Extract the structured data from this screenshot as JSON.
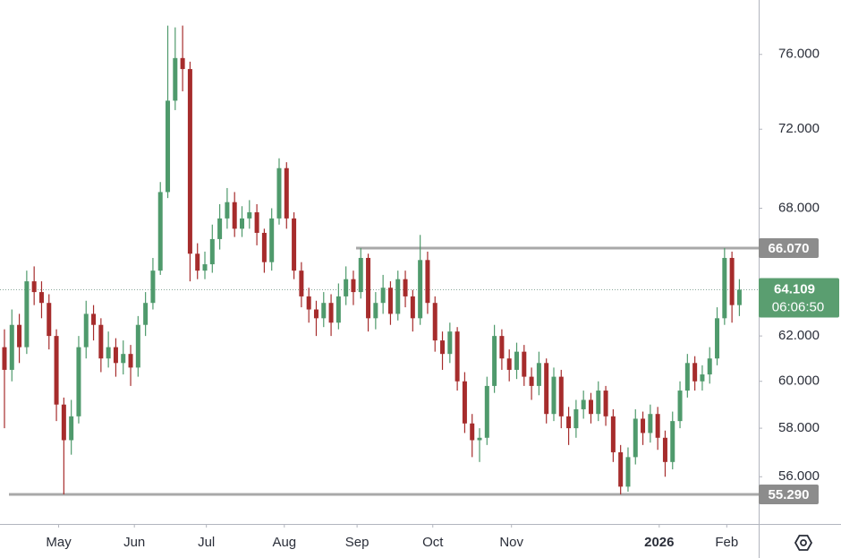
{
  "chart_data": {
    "type": "candlestick",
    "log_scale": true,
    "up_color": "#4f9a6c",
    "down_color": "#a62c2c",
    "x": [
      0,
      1,
      2,
      3,
      4,
      5,
      6,
      7,
      8,
      9,
      10,
      11,
      12,
      13,
      14,
      15,
      16,
      17,
      18,
      19,
      20,
      21,
      22,
      23,
      24,
      25,
      26,
      27,
      28,
      29,
      30,
      31,
      32,
      33,
      34,
      35,
      36,
      37,
      38,
      39,
      40,
      41,
      42,
      43,
      44,
      45,
      46,
      47,
      48,
      49,
      50,
      51,
      52,
      53,
      54,
      55,
      56,
      57,
      58,
      59,
      60,
      61,
      62,
      63,
      64,
      65,
      66,
      67,
      68,
      69,
      70,
      71,
      72,
      73,
      74,
      75,
      76,
      77,
      78,
      79,
      80,
      81,
      82,
      83,
      84,
      85,
      86,
      87,
      88,
      89,
      90,
      91,
      92,
      93,
      94,
      95,
      96,
      97,
      98,
      99
    ],
    "open": [
      61.5,
      60.5,
      62.5,
      61.5,
      64.5,
      64.0,
      63.5,
      62.0,
      59.0,
      57.5,
      58.5,
      61.5,
      63.0,
      62.5,
      61.0,
      61.5,
      60.8,
      61.2,
      60.6,
      62.5,
      63.5,
      65.0,
      68.8,
      73.5,
      75.8,
      75.2,
      65.8,
      65.0,
      65.3,
      66.5,
      67.5,
      68.3,
      67.0,
      67.5,
      67.8,
      66.8,
      65.4,
      67.5,
      70.0,
      67.5,
      65.0,
      63.8,
      63.2,
      62.8,
      63.5,
      62.6,
      63.8,
      64.6,
      64.0,
      65.6,
      62.8,
      63.5,
      64.2,
      63.0,
      64.6,
      63.8,
      62.8,
      65.5,
      63.5,
      61.8,
      61.2,
      62.2,
      60.0,
      58.2,
      57.5,
      57.6,
      59.8,
      62.0,
      61.0,
      60.5,
      61.3,
      60.2,
      59.8,
      60.8,
      58.6,
      60.2,
      58.5,
      58.0,
      58.8,
      59.2,
      58.6,
      59.6,
      58.5,
      57.0,
      55.6,
      56.8,
      58.4,
      57.8,
      58.6,
      57.6,
      56.6,
      58.3,
      59.6,
      60.8,
      60.0,
      60.3,
      61.0,
      62.8,
      65.6,
      63.4
    ],
    "high": [
      62.3,
      63.2,
      63.0,
      65.0,
      65.2,
      64.5,
      63.9,
      62.3,
      59.3,
      59.2,
      62.0,
      63.6,
      63.4,
      62.8,
      62.2,
      61.9,
      61.8,
      61.6,
      62.9,
      64.0,
      65.6,
      69.3,
      77.6,
      77.5,
      77.6,
      75.6,
      66.3,
      65.9,
      67.2,
      68.2,
      69.0,
      68.8,
      68.1,
      68.4,
      68.2,
      67.0,
      68.0,
      70.5,
      70.3,
      67.8,
      65.4,
      64.2,
      63.6,
      64.0,
      63.9,
      64.4,
      65.2,
      65.0,
      66.07,
      65.8,
      64.0,
      64.8,
      64.5,
      65.0,
      65.0,
      64.1,
      66.7,
      65.9,
      63.8,
      62.2,
      62.6,
      62.4,
      60.4,
      58.6,
      58.0,
      60.2,
      62.5,
      62.3,
      61.4,
      61.7,
      61.6,
      60.6,
      61.3,
      61.0,
      60.6,
      60.5,
      58.9,
      59.2,
      59.6,
      59.5,
      60.0,
      59.8,
      58.8,
      57.3,
      57.2,
      58.8,
      58.7,
      59.0,
      58.9,
      57.9,
      58.7,
      60.0,
      61.2,
      61.1,
      60.7,
      61.5,
      63.3,
      66.07,
      65.9,
      64.6
    ],
    "low": [
      58.0,
      60.0,
      60.8,
      61.2,
      63.4,
      62.8,
      61.4,
      58.3,
      55.29,
      56.9,
      58.2,
      61.0,
      61.8,
      60.4,
      60.6,
      60.2,
      60.3,
      59.8,
      60.2,
      62.0,
      63.2,
      64.8,
      68.5,
      73.0,
      74.0,
      64.5,
      64.6,
      64.6,
      64.9,
      66.0,
      67.0,
      66.6,
      66.6,
      67.0,
      66.2,
      64.9,
      65.0,
      67.2,
      67.0,
      64.6,
      63.3,
      62.6,
      62.0,
      62.4,
      62.0,
      62.3,
      63.4,
      63.4,
      63.7,
      62.2,
      62.3,
      63.0,
      62.5,
      62.7,
      63.3,
      62.2,
      62.5,
      63.0,
      61.3,
      60.5,
      60.8,
      59.6,
      57.8,
      56.8,
      56.6,
      57.3,
      59.5,
      60.5,
      60.0,
      60.1,
      59.8,
      59.2,
      59.4,
      58.2,
      58.3,
      58.0,
      57.3,
      57.6,
      58.4,
      58.2,
      58.3,
      58.1,
      56.6,
      55.29,
      55.4,
      56.5,
      57.3,
      57.4,
      57.1,
      56.0,
      56.3,
      58.0,
      59.3,
      59.6,
      59.6,
      59.9,
      60.7,
      62.5,
      62.6,
      62.9
    ],
    "close": [
      60.5,
      62.5,
      61.5,
      64.5,
      64.0,
      63.5,
      62.0,
      59.0,
      57.5,
      58.5,
      61.5,
      63.0,
      62.5,
      61.0,
      61.5,
      60.8,
      61.2,
      60.6,
      62.5,
      63.5,
      65.0,
      68.8,
      73.5,
      75.8,
      75.2,
      65.8,
      65.0,
      65.3,
      66.5,
      67.5,
      68.3,
      67.0,
      67.5,
      67.8,
      66.8,
      65.4,
      67.5,
      70.0,
      67.5,
      65.0,
      63.8,
      63.2,
      62.8,
      63.5,
      62.6,
      63.8,
      64.6,
      64.0,
      65.6,
      62.8,
      63.5,
      64.2,
      63.0,
      64.6,
      63.8,
      62.8,
      65.5,
      63.5,
      61.8,
      61.2,
      62.2,
      60.0,
      58.2,
      57.5,
      57.6,
      59.8,
      62.0,
      61.0,
      60.5,
      61.3,
      60.2,
      59.8,
      60.8,
      58.6,
      60.2,
      58.5,
      58.0,
      58.8,
      59.2,
      58.6,
      59.6,
      58.5,
      57.0,
      55.6,
      56.8,
      58.4,
      57.8,
      58.6,
      57.6,
      56.6,
      58.3,
      59.6,
      60.8,
      60.0,
      60.3,
      61.0,
      62.8,
      65.6,
      63.4,
      64.109
    ],
    "xlim": [
      -0.6,
      101.6
    ],
    "xticks": [
      {
        "value": 7.3,
        "label": "May"
      },
      {
        "value": 17.5,
        "label": "Jun"
      },
      {
        "value": 27.2,
        "label": "Jul"
      },
      {
        "value": 37.7,
        "label": "Aug"
      },
      {
        "value": 47.5,
        "label": "Sep"
      },
      {
        "value": 57.7,
        "label": "Oct"
      },
      {
        "value": 68.3,
        "label": "Nov"
      },
      {
        "value": 88.2,
        "label": "2026"
      },
      {
        "value": 97.3,
        "label": "Feb"
      }
    ],
    "ylim": [
      54.12,
      79.05
    ],
    "yticks": [
      {
        "value": 56,
        "label": "56.000"
      },
      {
        "value": 58,
        "label": "58.000"
      },
      {
        "value": 60,
        "label": "60.000"
      },
      {
        "value": 62,
        "label": "62.000"
      },
      {
        "value": 68,
        "label": "68.000"
      },
      {
        "value": 72,
        "label": "72.000"
      },
      {
        "value": 76,
        "label": "76.000"
      }
    ],
    "price_lines": [
      {
        "value": 66.07,
        "label": "66.070",
        "color": "#a8a8a8"
      },
      {
        "value": 55.29,
        "label": "55.290",
        "color": "#a8a8a8"
      }
    ],
    "last_price": {
      "value": 64.109,
      "label": "64.109",
      "countdown": "06:06:50",
      "color": "#5a9e70"
    }
  }
}
